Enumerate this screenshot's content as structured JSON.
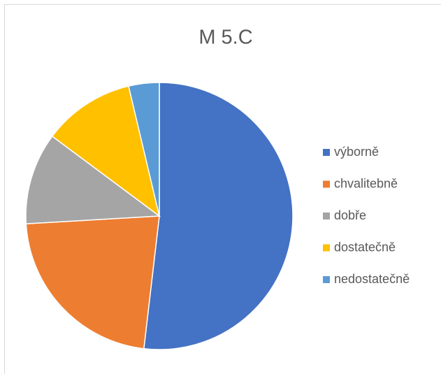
{
  "chart_data": {
    "type": "pie",
    "title": "M 5.C",
    "categories": [
      "výborně",
      "chvalitebně",
      "dobře",
      "dostatečně",
      "nedostatečně"
    ],
    "values": [
      14,
      6,
      3,
      3,
      1
    ],
    "colors": [
      "#4472c4",
      "#ed7d31",
      "#a5a5a5",
      "#ffc000",
      "#5b9bd5"
    ],
    "legend": "right"
  }
}
